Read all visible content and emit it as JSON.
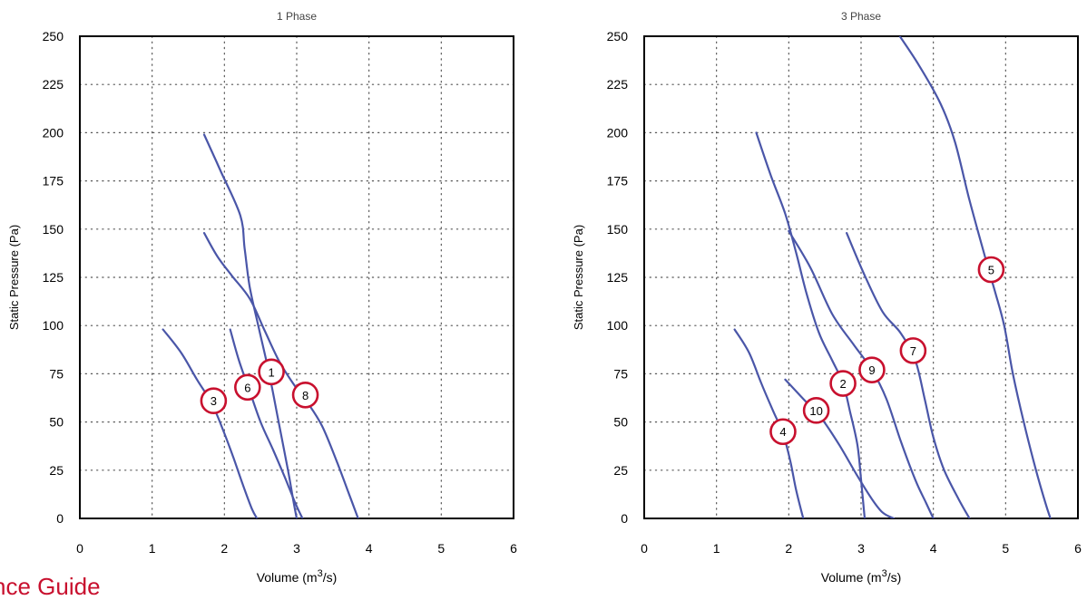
{
  "page": {
    "corner_text": "nce Guide"
  },
  "style": {
    "curve_color": "#4a56a8",
    "marker_color": "#c8102e",
    "grid_color": "#555555",
    "axis_color": "#000000"
  },
  "chart_data": [
    {
      "type": "line",
      "title": "1 Phase",
      "xlabel": "Volume (m",
      "xlabel_sup": "3",
      "xlabel_tail": "/s)",
      "ylabel": "Static Pressure (Pa)",
      "xlim": [
        0,
        6
      ],
      "ylim": [
        0,
        250
      ],
      "xticks": [
        0,
        1,
        2,
        3,
        4,
        5,
        6
      ],
      "yticks": [
        0,
        25,
        50,
        75,
        100,
        125,
        150,
        175,
        200,
        225,
        250
      ],
      "grid": true,
      "series": [
        {
          "name": "1",
          "label_at": [
            2.65,
            76
          ],
          "points": [
            [
              1.72,
              199
            ],
            [
              1.95,
              180
            ],
            [
              2.22,
              157
            ],
            [
              2.28,
              140
            ],
            [
              2.35,
              120
            ],
            [
              2.48,
              98
            ],
            [
              2.62,
              75
            ],
            [
              2.75,
              50
            ],
            [
              2.88,
              25
            ],
            [
              2.95,
              10
            ],
            [
              3.0,
              0
            ]
          ]
        },
        {
          "name": "3",
          "label_at": [
            1.85,
            61
          ],
          "points": [
            [
              1.15,
              98
            ],
            [
              1.4,
              86
            ],
            [
              1.62,
              72
            ],
            [
              1.82,
              60
            ],
            [
              1.98,
              46
            ],
            [
              2.12,
              32
            ],
            [
              2.25,
              18
            ],
            [
              2.38,
              5
            ],
            [
              2.45,
              0
            ]
          ]
        },
        {
          "name": "6",
          "label_at": [
            2.32,
            68
          ],
          "points": [
            [
              2.08,
              98
            ],
            [
              2.2,
              82
            ],
            [
              2.35,
              66
            ],
            [
              2.5,
              50
            ],
            [
              2.68,
              35
            ],
            [
              2.85,
              20
            ],
            [
              2.98,
              8
            ],
            [
              3.08,
              0
            ]
          ]
        },
        {
          "name": "8",
          "label_at": [
            3.12,
            64
          ],
          "points": [
            [
              1.72,
              148
            ],
            [
              1.9,
              136
            ],
            [
              2.1,
              126
            ],
            [
              2.35,
              114
            ],
            [
              2.55,
              98
            ],
            [
              2.75,
              82
            ],
            [
              2.95,
              70
            ],
            [
              3.15,
              60
            ],
            [
              3.35,
              48
            ],
            [
              3.55,
              30
            ],
            [
              3.7,
              15
            ],
            [
              3.85,
              0
            ]
          ]
        }
      ]
    },
    {
      "type": "line",
      "title": "3 Phase",
      "xlabel": "Volume (m",
      "xlabel_sup": "3",
      "xlabel_tail": "/s)",
      "ylabel": "Static Pressure (Pa)",
      "xlim": [
        0,
        6
      ],
      "ylim": [
        0,
        250
      ],
      "xticks": [
        0,
        1,
        2,
        3,
        4,
        5,
        6
      ],
      "yticks": [
        0,
        25,
        50,
        75,
        100,
        125,
        150,
        175,
        200,
        225,
        250
      ],
      "grid": true,
      "series": [
        {
          "name": "2",
          "label_at": [
            2.75,
            70
          ],
          "points": [
            [
              1.55,
              200
            ],
            [
              1.75,
              178
            ],
            [
              1.95,
              158
            ],
            [
              2.1,
              138
            ],
            [
              2.25,
              116
            ],
            [
              2.42,
              96
            ],
            [
              2.6,
              82
            ],
            [
              2.75,
              70
            ],
            [
              2.85,
              55
            ],
            [
              2.95,
              38
            ],
            [
              3.0,
              20
            ],
            [
              3.05,
              0
            ]
          ]
        },
        {
          "name": "4",
          "label_at": [
            1.92,
            45
          ],
          "points": [
            [
              1.25,
              98
            ],
            [
              1.45,
              86
            ],
            [
              1.62,
              70
            ],
            [
              1.78,
              56
            ],
            [
              1.92,
              44
            ],
            [
              2.02,
              30
            ],
            [
              2.1,
              15
            ],
            [
              2.2,
              0
            ]
          ]
        },
        {
          "name": "5",
          "label_at": [
            4.8,
            129
          ],
          "points": [
            [
              3.5,
              252
            ],
            [
              3.8,
              235
            ],
            [
              4.1,
              215
            ],
            [
              4.3,
              195
            ],
            [
              4.5,
              165
            ],
            [
              4.72,
              135
            ],
            [
              4.85,
              118
            ],
            [
              4.98,
              100
            ],
            [
              5.1,
              75
            ],
            [
              5.25,
              50
            ],
            [
              5.42,
              25
            ],
            [
              5.55,
              8
            ],
            [
              5.62,
              0
            ]
          ]
        },
        {
          "name": "7",
          "label_at": [
            3.72,
            87
          ],
          "points": [
            [
              2.8,
              148
            ],
            [
              3.05,
              126
            ],
            [
              3.3,
              107
            ],
            [
              3.55,
              96
            ],
            [
              3.75,
              82
            ],
            [
              3.88,
              62
            ],
            [
              4.0,
              42
            ],
            [
              4.15,
              25
            ],
            [
              4.35,
              10
            ],
            [
              4.5,
              0
            ]
          ]
        },
        {
          "name": "9",
          "label_at": [
            3.15,
            77
          ],
          "points": [
            [
              2.0,
              149
            ],
            [
              2.3,
              130
            ],
            [
              2.6,
              106
            ],
            [
              2.9,
              90
            ],
            [
              3.15,
              77
            ],
            [
              3.35,
              62
            ],
            [
              3.55,
              40
            ],
            [
              3.75,
              20
            ],
            [
              3.9,
              8
            ],
            [
              4.0,
              0
            ]
          ]
        },
        {
          "name": "10",
          "label_at": [
            2.38,
            56
          ],
          "points": [
            [
              1.95,
              72
            ],
            [
              2.2,
              62
            ],
            [
              2.45,
              52
            ],
            [
              2.7,
              38
            ],
            [
              2.95,
              22
            ],
            [
              3.15,
              10
            ],
            [
              3.3,
              3
            ],
            [
              3.45,
              0
            ]
          ]
        }
      ]
    }
  ]
}
